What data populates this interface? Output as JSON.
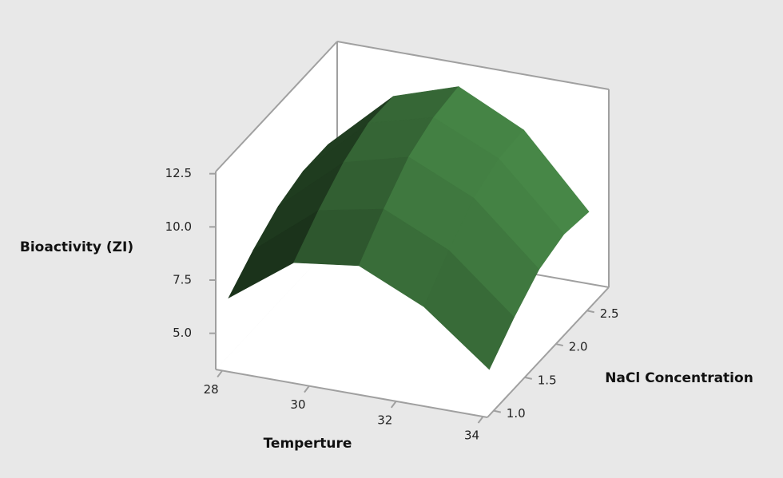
{
  "chart_data": {
    "type": "surface",
    "x_label": "Temperture",
    "y_label": "NaCl Concentration",
    "z_label": "Bioactivity (ZI)",
    "x": [
      28,
      29.5,
      31,
      32.5,
      34
    ],
    "y": [
      1.0,
      1.4,
      1.8,
      2.2,
      2.6
    ],
    "z": [
      [
        6.4,
        8.6,
        9.0,
        7.6,
        5.2
      ],
      [
        7.4,
        9.8,
        10.4,
        9.0,
        6.4
      ],
      [
        8.2,
        10.8,
        11.6,
        10.2,
        7.4
      ],
      [
        8.6,
        11.4,
        12.2,
        10.8,
        7.8
      ],
      [
        8.6,
        11.4,
        12.4,
        10.9,
        7.6
      ]
    ],
    "color": "#2f5a2f",
    "xlim": [
      27.85,
      34.1
    ],
    "ylim": [
      0.9,
      2.85
    ],
    "zlim": [
      3.3,
      12.6
    ],
    "xticks": [
      28,
      30,
      32,
      34
    ],
    "yticks": [
      {
        "value": 1.0,
        "label": "1.0"
      },
      {
        "value": 1.5,
        "label": "1.5"
      },
      {
        "value": 2.0,
        "label": "2.0"
      },
      {
        "value": 2.5,
        "label": "2.5"
      }
    ],
    "zticks": [
      {
        "value": 5.0,
        "label": "5.0"
      },
      {
        "value": 7.5,
        "label": "7.5"
      },
      {
        "value": 10.0,
        "label": "10.0"
      },
      {
        "value": 12.5,
        "label": "12.5"
      }
    ]
  }
}
